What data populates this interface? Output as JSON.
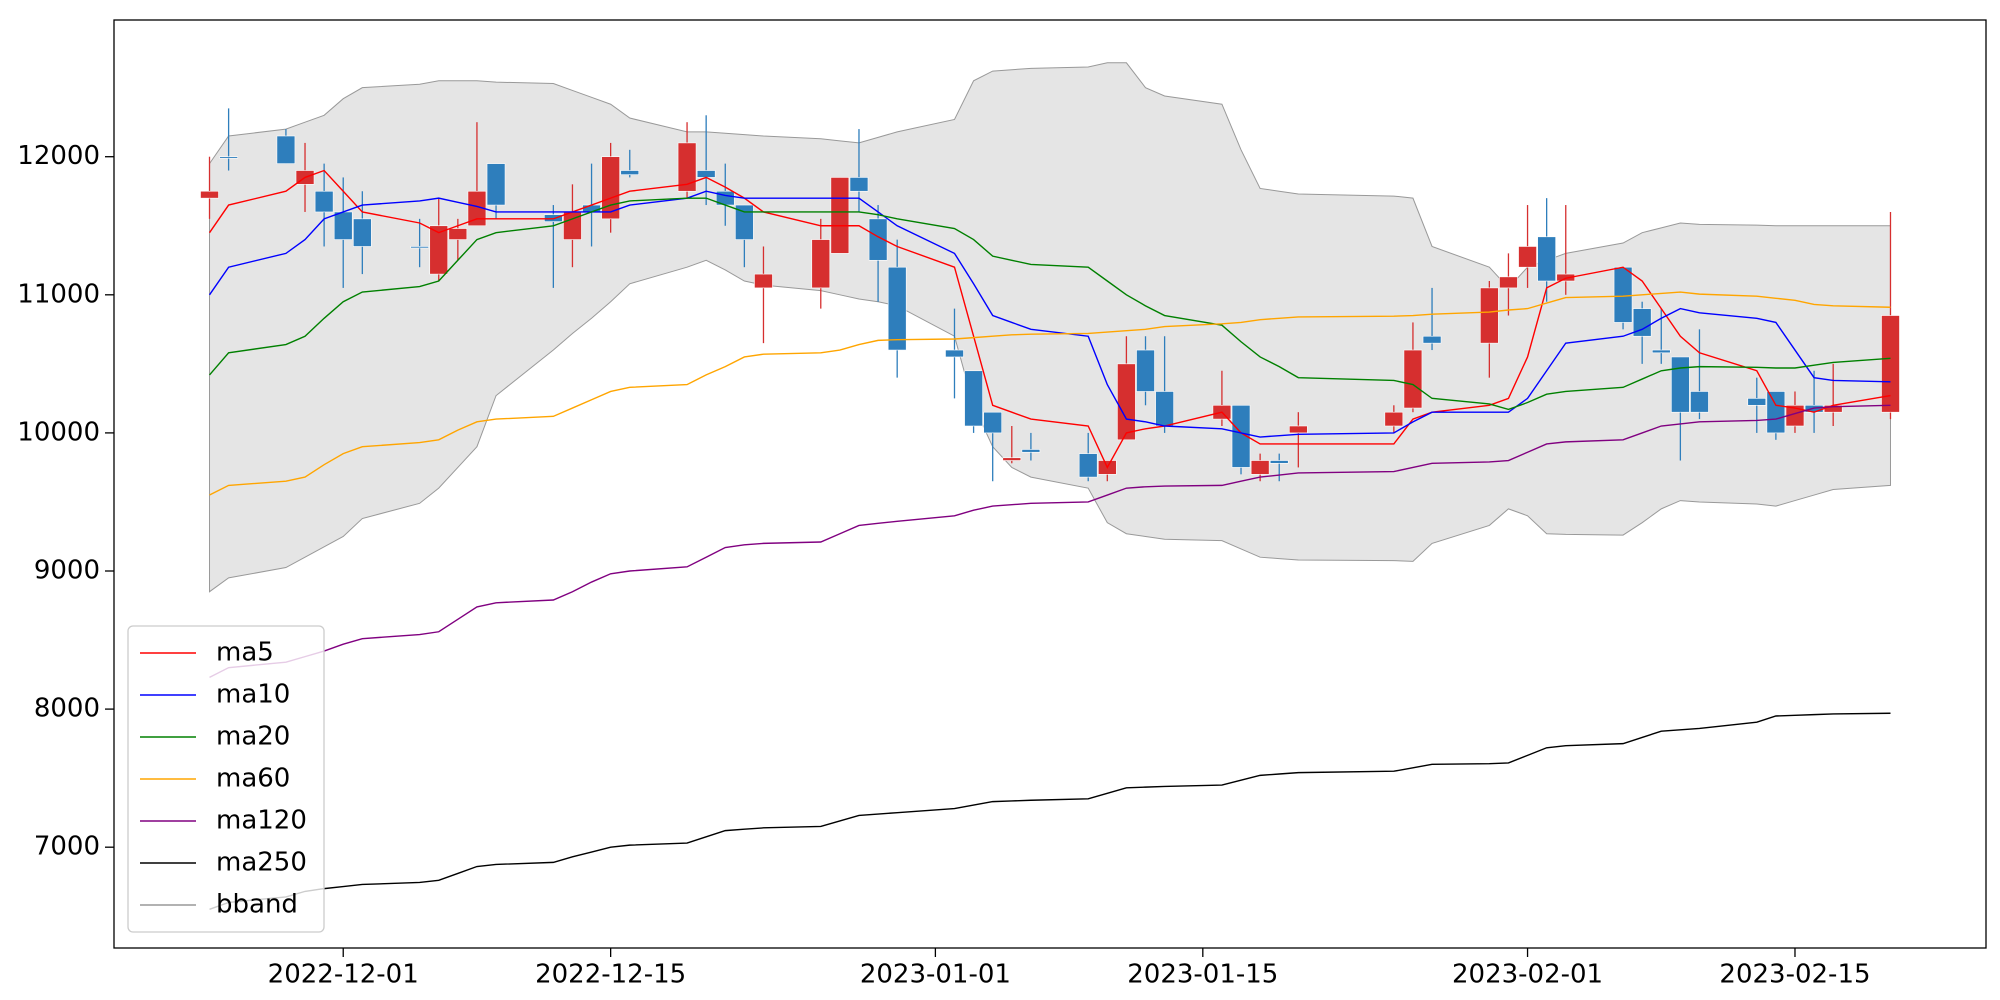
{
  "chart_data": {
    "type": "candlestick",
    "x": [
      "2022-11-24",
      "2022-11-25",
      "2022-11-28",
      "2022-11-29",
      "2022-11-30",
      "2022-12-01",
      "2022-12-02",
      "2022-12-05",
      "2022-12-06",
      "2022-12-07",
      "2022-12-08",
      "2022-12-09",
      "2022-12-12",
      "2022-12-13",
      "2022-12-14",
      "2022-12-15",
      "2022-12-16",
      "2022-12-19",
      "2022-12-20",
      "2022-12-21",
      "2022-12-22",
      "2022-12-23",
      "2022-12-26",
      "2022-12-27",
      "2022-12-28",
      "2022-12-29",
      "2022-12-30",
      "2023-01-02",
      "2023-01-03",
      "2023-01-04",
      "2023-01-05",
      "2023-01-06",
      "2023-01-09",
      "2023-01-10",
      "2023-01-11",
      "2023-01-12",
      "2023-01-13",
      "2023-01-16",
      "2023-01-17",
      "2023-01-18",
      "2023-01-19",
      "2023-01-20",
      "2023-01-25",
      "2023-01-26",
      "2023-01-27",
      "2023-01-30",
      "2023-01-31",
      "2023-02-01",
      "2023-02-02",
      "2023-02-03",
      "2023-02-06",
      "2023-02-07",
      "2023-02-08",
      "2023-02-09",
      "2023-02-10",
      "2023-02-13",
      "2023-02-14",
      "2023-02-15",
      "2023-02-16",
      "2023-02-17",
      "2023-02-20"
    ],
    "open": [
      11700,
      12000,
      12150,
      11800,
      11750,
      11600,
      11550,
      11350,
      11150,
      11400,
      11500,
      11950,
      11580,
      11400,
      11650,
      11550,
      11900,
      11750,
      11900,
      11750,
      11650,
      11050,
      11050,
      11300,
      11850,
      11550,
      11200,
      10600,
      10450,
      10150,
      9800,
      9880,
      9850,
      9700,
      9950,
      10600,
      10300,
      10100,
      10200,
      9700,
      9800,
      10000,
      10050,
      10180,
      10700,
      10650,
      11050,
      11200,
      11420,
      11100,
      11200,
      10900,
      10600,
      10550,
      10300,
      10250,
      10300,
      10050,
      10200,
      10150,
      10150
    ],
    "high": [
      12000,
      12350,
      12200,
      12100,
      11950,
      11850,
      11750,
      11550,
      11700,
      11550,
      12250,
      11950,
      11650,
      11800,
      11950,
      12100,
      12050,
      12250,
      12300,
      11950,
      11650,
      11350,
      11550,
      11850,
      12200,
      11650,
      11400,
      10900,
      10450,
      10150,
      10050,
      10000,
      10000,
      9800,
      10700,
      10700,
      10700,
      10450,
      10200,
      9850,
      9850,
      10150,
      10200,
      10800,
      11050,
      11100,
      11300,
      11650,
      11700,
      11650,
      11200,
      10950,
      10900,
      10550,
      10750,
      10400,
      10300,
      10300,
      10450,
      10500,
      11600
    ],
    "low": [
      11550,
      11900,
      11950,
      11600,
      11350,
      11050,
      11150,
      11200,
      11100,
      11250,
      11500,
      11550,
      11050,
      11200,
      11350,
      11450,
      11850,
      11700,
      11650,
      11500,
      11200,
      10650,
      10900,
      11300,
      11600,
      10950,
      10400,
      10250,
      10000,
      9650,
      9780,
      9800,
      9650,
      9650,
      9950,
      10200,
      10000,
      10050,
      9700,
      9650,
      9650,
      9750,
      10000,
      10150,
      10600,
      10400,
      10850,
      11050,
      10950,
      11000,
      10750,
      10500,
      10500,
      9800,
      10100,
      10000,
      9950,
      10000,
      10000,
      10050,
      10100
    ],
    "close": [
      11750,
      11990,
      11950,
      11900,
      11600,
      11400,
      11350,
      11340,
      11500,
      11480,
      11750,
      11650,
      11530,
      11600,
      11600,
      12000,
      11870,
      12100,
      11850,
      11650,
      11400,
      11150,
      11400,
      11850,
      11750,
      11250,
      10600,
      10550,
      10050,
      10000,
      9820,
      9860,
      9680,
      9800,
      10500,
      10300,
      10050,
      10200,
      9750,
      9800,
      9780,
      10050,
      10150,
      10600,
      10650,
      11050,
      11130,
      11350,
      11100,
      11150,
      10800,
      10700,
      10580,
      10150,
      10150,
      10200,
      10000,
      10200,
      10150,
      10200,
      10850
    ],
    "up_color": "#d62f2f",
    "down_color": "#2e7ebc",
    "series": [
      {
        "name": "ma5",
        "color": "#ff0000",
        "values": [
          11450,
          11650,
          11750,
          11850,
          11900,
          11750,
          11600,
          11520,
          11450,
          11500,
          11550,
          11550,
          11550,
          11600,
          11650,
          11700,
          11750,
          11800,
          11850,
          11780,
          11700,
          11600,
          11500,
          11500,
          11500,
          11420,
          11350,
          11200,
          10700,
          10200,
          10150,
          10100,
          10050,
          9750,
          10000,
          10030,
          10050,
          10150,
          10000,
          9920,
          9920,
          9920,
          9920,
          10100,
          10150,
          10200,
          10250,
          10550,
          11050,
          11120,
          11200,
          11100,
          10900,
          10700,
          10580,
          10450,
          10200,
          10180,
          10150,
          10200,
          10270
        ]
      },
      {
        "name": "ma10",
        "color": "#0000ff",
        "values": [
          11000,
          11200,
          11300,
          11400,
          11550,
          11600,
          11650,
          11680,
          11700,
          11670,
          11640,
          11600,
          11600,
          11600,
          11600,
          11600,
          11650,
          11700,
          11750,
          11720,
          11700,
          11700,
          11700,
          11700,
          11700,
          11600,
          11500,
          11300,
          11080,
          10850,
          10800,
          10750,
          10700,
          10350,
          10100,
          10080,
          10050,
          10030,
          10000,
          9970,
          9980,
          9990,
          10000,
          10080,
          10150,
          10150,
          10150,
          10250,
          10450,
          10650,
          10700,
          10750,
          10830,
          10900,
          10870,
          10830,
          10800,
          10600,
          10400,
          10380,
          10370
        ]
      },
      {
        "name": "ma20",
        "color": "#008000",
        "values": [
          10420,
          10580,
          10640,
          10700,
          10830,
          10950,
          11020,
          11060,
          11100,
          11250,
          11400,
          11450,
          11500,
          11550,
          11600,
          11650,
          11680,
          11700,
          11700,
          11650,
          11600,
          11600,
          11600,
          11600,
          11600,
          11580,
          11550,
          11480,
          11400,
          11280,
          11250,
          11220,
          11200,
          11100,
          11000,
          10920,
          10850,
          10780,
          10660,
          10550,
          10480,
          10400,
          10380,
          10350,
          10250,
          10210,
          10170,
          10220,
          10280,
          10300,
          10330,
          10390,
          10450,
          10470,
          10480,
          10475,
          10470,
          10470,
          10490,
          10510,
          10540
        ]
      },
      {
        "name": "ma60",
        "color": "#ffa500",
        "values": [
          9550,
          9620,
          9650,
          9680,
          9770,
          9850,
          9900,
          9930,
          9950,
          10020,
          10080,
          10100,
          10120,
          10180,
          10240,
          10300,
          10330,
          10350,
          10420,
          10480,
          10550,
          10570,
          10580,
          10600,
          10640,
          10670,
          10675,
          10680,
          10690,
          10700,
          10710,
          10715,
          10720,
          10730,
          10740,
          10750,
          10770,
          10790,
          10800,
          10820,
          10830,
          10840,
          10845,
          10850,
          10860,
          10875,
          10890,
          10900,
          10940,
          10980,
          10990,
          11000,
          11010,
          11020,
          11005,
          10990,
          10975,
          10960,
          10930,
          10920,
          10910
        ]
      },
      {
        "name": "ma120",
        "color": "#800080",
        "values": [
          8230,
          8300,
          8340,
          8380,
          8420,
          8470,
          8510,
          8540,
          8560,
          8650,
          8740,
          8770,
          8790,
          8850,
          8920,
          8980,
          9000,
          9030,
          9100,
          9170,
          9190,
          9200,
          9210,
          9270,
          9330,
          9345,
          9360,
          9400,
          9440,
          9470,
          9480,
          9490,
          9500,
          9550,
          9600,
          9610,
          9615,
          9620,
          9650,
          9680,
          9695,
          9710,
          9720,
          9750,
          9780,
          9790,
          9800,
          9860,
          9920,
          9935,
          9950,
          10000,
          10050,
          10065,
          10080,
          10090,
          10100,
          10140,
          10180,
          10190,
          10200
        ]
      },
      {
        "name": "ma250",
        "color": "#000000",
        "values": [
          6550,
          6600,
          6640,
          6680,
          6700,
          6715,
          6730,
          6745,
          6760,
          6810,
          6860,
          6875,
          6890,
          6930,
          6965,
          7000,
          7015,
          7030,
          7075,
          7120,
          7130,
          7140,
          7150,
          7190,
          7230,
          7240,
          7250,
          7280,
          7305,
          7330,
          7335,
          7340,
          7350,
          7390,
          7430,
          7435,
          7440,
          7450,
          7485,
          7520,
          7530,
          7540,
          7550,
          7575,
          7600,
          7605,
          7610,
          7665,
          7720,
          7735,
          7750,
          7795,
          7840,
          7850,
          7860,
          7905,
          7950,
          7955,
          7960,
          7965,
          7970
        ]
      }
    ],
    "bband": {
      "name": "bband",
      "color": "#999999",
      "fill": "#e5e5e5",
      "upper": [
        11950,
        12150,
        12200,
        12250,
        12300,
        12420,
        12500,
        12525,
        12550,
        12550,
        12550,
        12540,
        12530,
        12480,
        12430,
        12380,
        12280,
        12180,
        12180,
        12170,
        12160,
        12150,
        12130,
        12115,
        12100,
        12140,
        12180,
        12270,
        12550,
        12620,
        12630,
        12640,
        12650,
        12680,
        12680,
        12500,
        12440,
        12380,
        12050,
        11770,
        11750,
        11730,
        11715,
        11700,
        11350,
        11200,
        11050,
        11200,
        11250,
        11300,
        11375,
        11450,
        11485,
        11520,
        11510,
        11505,
        11500,
        11500,
        11500,
        11500,
        11500
      ],
      "lower": [
        8850,
        8950,
        9025,
        9100,
        9175,
        9250,
        9380,
        9490,
        9600,
        9750,
        9900,
        10270,
        10600,
        10720,
        10830,
        10950,
        11080,
        11200,
        11250,
        11180,
        11100,
        11070,
        11030,
        11000,
        10970,
        10950,
        10920,
        10700,
        10200,
        9900,
        9750,
        9680,
        9600,
        9350,
        9270,
        9250,
        9230,
        9220,
        9160,
        9100,
        9090,
        9080,
        9075,
        9070,
        9200,
        9330,
        9450,
        9400,
        9270,
        9265,
        9260,
        9350,
        9450,
        9510,
        9500,
        9485,
        9470,
        9510,
        9550,
        9590,
        9620
      ]
    },
    "xlim": [
      "2022-11-19",
      "2023-02-25"
    ],
    "xticks": [
      "2022-12-01",
      "2022-12-15",
      "2023-01-01",
      "2023-01-15",
      "2023-02-01",
      "2023-02-15"
    ],
    "ylim": [
      6270,
      12990
    ],
    "yticks": [
      7000,
      8000,
      9000,
      10000,
      11000,
      12000
    ],
    "legend": "lower left"
  }
}
